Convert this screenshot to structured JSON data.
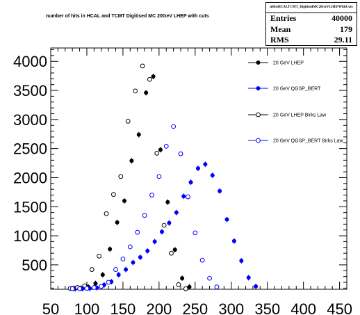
{
  "chart_data": {
    "type": "scatter",
    "title": "number of hits in HCAL and TCMT Digitised MC 20GeV LHEP with cuts",
    "xlim": [
      50,
      460
    ],
    "ylim": [
      80,
      4230
    ],
    "x_ticks": [
      "50",
      "100",
      "150",
      "200",
      "250",
      "300",
      "350",
      "400",
      "450"
    ],
    "y_ticks": [
      "500",
      "1000",
      "1500",
      "2000",
      "2500",
      "3000",
      "3500",
      "4000"
    ],
    "legend_placement": "right",
    "stats": {
      "title": "nHitsHCALTCMT_DigitisedMC20GeVLHEPWithCuts",
      "rows": [
        {
          "label": "Entries",
          "value": "40000"
        },
        {
          "label": "Mean",
          "value": "179"
        },
        {
          "label": "RMS",
          "value": "29.11"
        }
      ]
    },
    "series": [
      {
        "name": "20 GeV LHEP",
        "color": "#000000",
        "marker": "filled",
        "x": [
          82,
          92,
          102,
          112,
          122,
          132,
          142,
          152,
          162,
          172,
          182,
          192,
          202,
          212,
          222,
          232,
          242
        ],
        "y": [
          95,
          100,
          120,
          180,
          330,
          770,
          1230,
          1600,
          2290,
          2740,
          3460,
          3740,
          2480,
          1580,
          760,
          270,
          120
        ]
      },
      {
        "name": "20 GeV QGSP_BERT",
        "color": "#0000ff",
        "marker": "filled",
        "x": [
          84,
          94,
          104,
          114,
          124,
          134,
          144,
          154,
          164,
          174,
          184,
          194,
          204,
          214,
          224,
          234,
          244,
          254,
          264,
          274,
          284,
          294,
          304,
          314,
          324,
          334
        ],
        "y": [
          90,
          90,
          95,
          105,
          155,
          210,
          330,
          420,
          540,
          630,
          740,
          900,
          1070,
          1220,
          1400,
          1680,
          1920,
          2160,
          2230,
          2040,
          1770,
          1280,
          910,
          570,
          280,
          130
        ]
      },
      {
        "name": "20 GeV LHEP Birks Law",
        "color": "#000000",
        "marker": "open",
        "x": [
          77,
          87,
          97,
          107,
          117,
          127,
          137,
          147,
          157,
          167,
          177,
          187,
          197,
          207,
          217,
          227,
          237
        ],
        "y": [
          95,
          110,
          140,
          420,
          650,
          1380,
          1710,
          2020,
          2970,
          3490,
          3920,
          3690,
          2420,
          1180,
          700,
          160,
          90
        ]
      },
      {
        "name": "20 GeV QGSP_BERT Birks Law",
        "color": "#0000ff",
        "marker": "open",
        "x": [
          80,
          90,
          100,
          110,
          120,
          130,
          140,
          150,
          160,
          170,
          180,
          190,
          200,
          210,
          220,
          230,
          240,
          250,
          260,
          270,
          280
        ],
        "y": [
          90,
          90,
          95,
          110,
          130,
          200,
          420,
          600,
          810,
          1060,
          1350,
          1700,
          2020,
          2540,
          2880,
          2410,
          1670,
          1050,
          580,
          270,
          120
        ]
      }
    ]
  }
}
